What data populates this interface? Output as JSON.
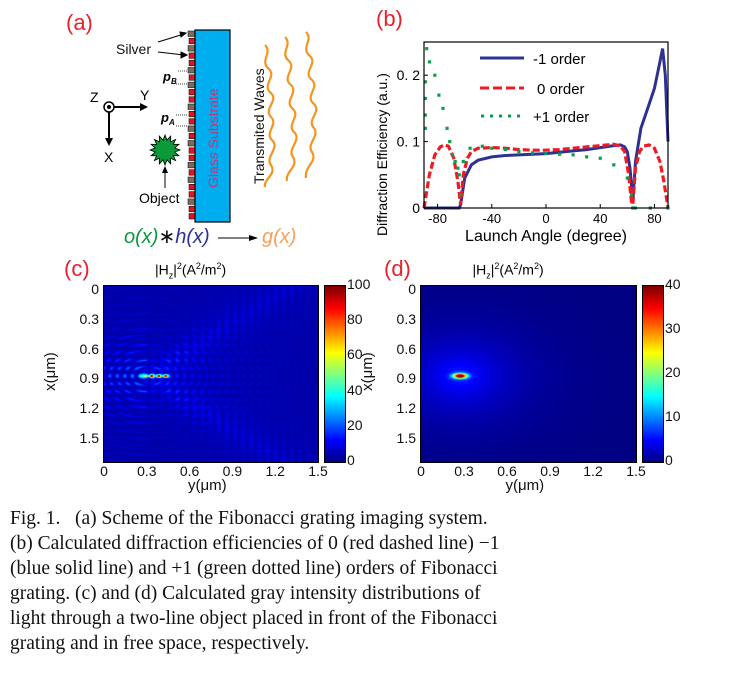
{
  "panel_a": {
    "label": "(a)",
    "silver_label": "Silver",
    "pB_label": "p",
    "pB_sub": "B",
    "pA_label": "p",
    "pA_sub": "A",
    "axis_z": "Z",
    "axis_y": "Y",
    "axis_x": "X",
    "object_label": "Object",
    "substrate_label": "Glass Substrate",
    "waves_label": "Transmited Waves",
    "formula_o": "o(x)",
    "formula_star": "∗",
    "formula_h": "h(x)",
    "formula_g": "g(x)",
    "colors": {
      "substrate": "#00aeef",
      "silver": "#7a6a60",
      "grating": "#e3141f",
      "waves": "#f7941d",
      "object": "#0a9a3a"
    }
  },
  "chart_data": [
    {
      "panel_label": "(b)",
      "type": "line",
      "xlabel": "Launch Angle (degree)",
      "ylabel": "Diffraction Efficiency (a.u.)",
      "xlim": [
        -90,
        90
      ],
      "ylim": [
        0,
        0.25
      ],
      "xticks": [
        "-80",
        "-40",
        "0",
        "40",
        "80"
      ],
      "xtick_values": [
        -80,
        -40,
        0,
        40,
        80
      ],
      "yticks": [
        "0",
        "0. 1",
        "0. 2"
      ],
      "ytick_values": [
        0,
        0.1,
        0.2
      ],
      "legend_position": "top-right",
      "series": [
        {
          "name": "-1 order",
          "style": "solid",
          "color": "#2e3192",
          "x": [
            -90,
            -64,
            -63,
            -60,
            -55,
            -50,
            -40,
            -30,
            -20,
            -10,
            0,
            10,
            20,
            30,
            40,
            50,
            55,
            58,
            60,
            62,
            64,
            66,
            70,
            75,
            80,
            84,
            86,
            88,
            90
          ],
          "y": [
            0,
            0,
            0.005,
            0.045,
            0.065,
            0.072,
            0.077,
            0.079,
            0.08,
            0.081,
            0.082,
            0.084,
            0.086,
            0.088,
            0.091,
            0.094,
            0.095,
            0.092,
            0.085,
            0.06,
            0.01,
            0.07,
            0.12,
            0.15,
            0.18,
            0.22,
            0.24,
            0.2,
            0.1
          ]
        },
        {
          "name": "0  order",
          "style": "dashed",
          "color": "#ed1c24",
          "x": [
            -90,
            -86,
            -82,
            -78,
            -75,
            -72,
            -68,
            -65,
            -63,
            -61,
            -58,
            -55,
            -50,
            -40,
            -30,
            -20,
            -10,
            0,
            10,
            20,
            30,
            40,
            50,
            55,
            58,
            61,
            63,
            64,
            66,
            69,
            72,
            76,
            80,
            84,
            87,
            90
          ],
          "y": [
            0,
            0.05,
            0.08,
            0.092,
            0.095,
            0.093,
            0.075,
            0.04,
            0.005,
            0.05,
            0.075,
            0.085,
            0.09,
            0.091,
            0.09,
            0.088,
            0.087,
            0.087,
            0.088,
            0.09,
            0.092,
            0.094,
            0.096,
            0.093,
            0.085,
            0.05,
            0.01,
            0.005,
            0.06,
            0.085,
            0.093,
            0.095,
            0.09,
            0.07,
            0.04,
            0
          ]
        },
        {
          "name": "+1 order",
          "style": "dotted",
          "color": "#0d9e4c",
          "x": [
            -89,
            -89,
            -89,
            -89,
            -88,
            -86,
            -82,
            -79,
            -76,
            -73,
            -71,
            -69,
            -67,
            -65,
            -64,
            -63,
            -61,
            -56,
            -47,
            -40,
            -30,
            -20,
            -10,
            0,
            10,
            20,
            30,
            40,
            50,
            60,
            63,
            64,
            66,
            77,
            90
          ],
          "y": [
            0.12,
            0.14,
            0.165,
            0.19,
            0.24,
            0.22,
            0.2,
            0.17,
            0.15,
            0.12,
            0.1,
            0.08,
            0.07,
            0.06,
            0.05,
            0.02,
            0.07,
            0.09,
            0.093,
            0.09,
            0.088,
            0.085,
            0.083,
            0.082,
            0.081,
            0.08,
            0.077,
            0.075,
            0.065,
            0.045,
            0.02,
            0,
            0,
            0,
            0
          ]
        }
      ]
    },
    {
      "panel_label": "(c)",
      "type": "heatmap",
      "title_main": "|H",
      "title_sub": "z",
      "title_sup": "2",
      "title_rest": "(A",
      "title_sup2": "2",
      "title_rest2": "/m",
      "title_sup3": "2",
      "title_end": ")",
      "xlabel": "y(μm)",
      "ylabel": "x(μm)",
      "xticks": [
        "0",
        "0.3",
        "0.6",
        "0.9",
        "1.2",
        "1.5"
      ],
      "yticks": [
        "0",
        "0.3",
        "0.6",
        "0.9",
        "1.2",
        "1.5"
      ],
      "xlim": [
        0,
        1.5
      ],
      "colorbar_ticks": [
        "100",
        "80",
        "60",
        "40",
        "20",
        "0"
      ],
      "colorbar_range": [
        0,
        100
      ],
      "colormap": "jet",
      "hotspot": {
        "x_um": 0.85,
        "y_um": [
          0.33,
          0.38,
          0.43
        ]
      }
    },
    {
      "panel_label": "(d)",
      "type": "heatmap",
      "title_main": "|H",
      "title_sub": "z",
      "title_sup": "2",
      "title_rest": "(A",
      "title_sup2": "2",
      "title_rest2": "/m",
      "title_sup3": "2",
      "title_end": ")",
      "xlabel": "y(μm)",
      "ylabel": "x(μm)",
      "xticks": [
        "0",
        "0.3",
        "0.6",
        "0.9",
        "1.2",
        "1.5"
      ],
      "yticks": [
        "0",
        "0.3",
        "0.6",
        "0.9",
        "1.2",
        "1.5"
      ],
      "xlim": [
        0,
        1.5
      ],
      "colorbar_ticks": [
        "40",
        "30",
        "20",
        "10",
        "0"
      ],
      "colorbar_range": [
        0,
        40
      ],
      "colormap": "jet",
      "hotspot": {
        "x_um": 0.85,
        "y_um": [
          0.27
        ]
      }
    }
  ],
  "caption": {
    "lines": [
      "Fig. 1.   (a) Scheme of the Fibonacci grating imaging system.",
      "(b) Calculated diffraction efficiencies of 0 (red dashed line) −1",
      "(blue solid line) and +1 (green dotted line) orders of Fibonacci",
      "grating. (c) and (d) Calculated gray intensity distributions of",
      "light through a two-line object placed in front of the Fibonacci",
      "grating and in free space, respectively."
    ]
  }
}
